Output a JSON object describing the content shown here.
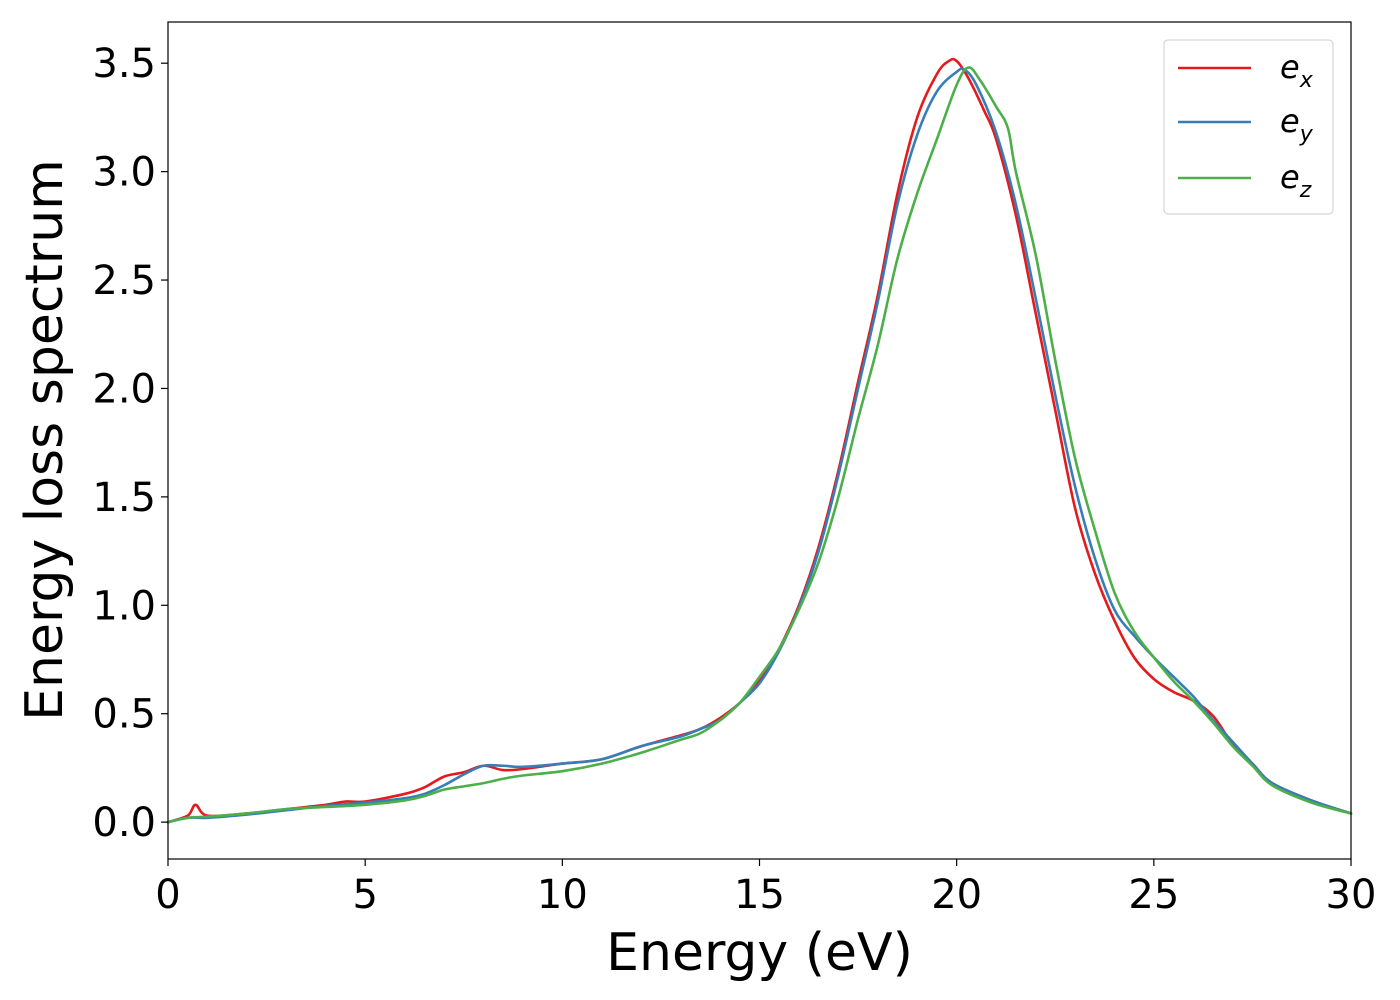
{
  "chart_data": {
    "type": "line",
    "title": "",
    "xlabel": "Energy (eV)",
    "ylabel": "Energy loss spectrum",
    "xlim": [
      0,
      30
    ],
    "ylim": [
      -0.17,
      3.69
    ],
    "xticks": [
      0,
      5,
      10,
      15,
      20,
      25,
      30
    ],
    "xtick_labels": [
      "0",
      "5",
      "10",
      "15",
      "20",
      "25",
      "30"
    ],
    "yticks": [
      0.0,
      0.5,
      1.0,
      1.5,
      2.0,
      2.5,
      3.0,
      3.5
    ],
    "ytick_labels": [
      "0.0",
      "0.5",
      "1.0",
      "1.5",
      "2.0",
      "2.5",
      "3.0",
      "3.5"
    ],
    "grid": false,
    "legend_position": "top-right",
    "series": [
      {
        "name": "e",
        "subscript": "x",
        "color": "#e41a1c",
        "points": [
          [
            0,
            0.0
          ],
          [
            0.5,
            0.03
          ],
          [
            0.7,
            0.08
          ],
          [
            1.0,
            0.03
          ],
          [
            2,
            0.04
          ],
          [
            3,
            0.06
          ],
          [
            4,
            0.08
          ],
          [
            4.5,
            0.095
          ],
          [
            5,
            0.095
          ],
          [
            6,
            0.13
          ],
          [
            6.5,
            0.16
          ],
          [
            7,
            0.21
          ],
          [
            7.5,
            0.23
          ],
          [
            8,
            0.26
          ],
          [
            8.5,
            0.24
          ],
          [
            9,
            0.245
          ],
          [
            10,
            0.27
          ],
          [
            11,
            0.29
          ],
          [
            12,
            0.35
          ],
          [
            13,
            0.4
          ],
          [
            13.5,
            0.43
          ],
          [
            14,
            0.48
          ],
          [
            14.5,
            0.55
          ],
          [
            15,
            0.65
          ],
          [
            15.5,
            0.8
          ],
          [
            16,
            1.0
          ],
          [
            16.5,
            1.27
          ],
          [
            17,
            1.62
          ],
          [
            17.5,
            2.03
          ],
          [
            18,
            2.43
          ],
          [
            18.5,
            2.9
          ],
          [
            19,
            3.25
          ],
          [
            19.5,
            3.45
          ],
          [
            19.8,
            3.51
          ],
          [
            20,
            3.51
          ],
          [
            20.3,
            3.43
          ],
          [
            20.7,
            3.28
          ],
          [
            21,
            3.15
          ],
          [
            21.5,
            2.8
          ],
          [
            22,
            2.35
          ],
          [
            22.5,
            1.9
          ],
          [
            23,
            1.45
          ],
          [
            23.5,
            1.15
          ],
          [
            24,
            0.93
          ],
          [
            24.5,
            0.76
          ],
          [
            25,
            0.66
          ],
          [
            25.5,
            0.6
          ],
          [
            26,
            0.56
          ],
          [
            26.5,
            0.49
          ],
          [
            27,
            0.36
          ],
          [
            27.5,
            0.27
          ],
          [
            28,
            0.18
          ],
          [
            29,
            0.1
          ],
          [
            30,
            0.04
          ]
        ]
      },
      {
        "name": "e",
        "subscript": "y",
        "color": "#377eb8",
        "points": [
          [
            0,
            0.0
          ],
          [
            0.5,
            0.02
          ],
          [
            1,
            0.02
          ],
          [
            2,
            0.035
          ],
          [
            3,
            0.055
          ],
          [
            4,
            0.075
          ],
          [
            5,
            0.09
          ],
          [
            6,
            0.11
          ],
          [
            6.5,
            0.13
          ],
          [
            7,
            0.17
          ],
          [
            7.5,
            0.22
          ],
          [
            8,
            0.26
          ],
          [
            8.5,
            0.26
          ],
          [
            9,
            0.255
          ],
          [
            10,
            0.27
          ],
          [
            11,
            0.29
          ],
          [
            12,
            0.35
          ],
          [
            13,
            0.395
          ],
          [
            13.5,
            0.43
          ],
          [
            14,
            0.47
          ],
          [
            14.5,
            0.55
          ],
          [
            15,
            0.64
          ],
          [
            15.5,
            0.79
          ],
          [
            16,
            0.99
          ],
          [
            16.5,
            1.25
          ],
          [
            17,
            1.6
          ],
          [
            17.5,
            2.0
          ],
          [
            18,
            2.4
          ],
          [
            18.5,
            2.85
          ],
          [
            19,
            3.17
          ],
          [
            19.5,
            3.37
          ],
          [
            20,
            3.46
          ],
          [
            20.2,
            3.47
          ],
          [
            20.5,
            3.4
          ],
          [
            21,
            3.18
          ],
          [
            21.5,
            2.85
          ],
          [
            22,
            2.42
          ],
          [
            22.5,
            1.97
          ],
          [
            23,
            1.55
          ],
          [
            23.5,
            1.22
          ],
          [
            24,
            0.98
          ],
          [
            24.5,
            0.86
          ],
          [
            25,
            0.76
          ],
          [
            25.5,
            0.67
          ],
          [
            26,
            0.58
          ],
          [
            26.5,
            0.47
          ],
          [
            27,
            0.37
          ],
          [
            27.5,
            0.27
          ],
          [
            28,
            0.18
          ],
          [
            29,
            0.1
          ],
          [
            30,
            0.04
          ]
        ]
      },
      {
        "name": "e",
        "subscript": "z",
        "color": "#4daf4a",
        "points": [
          [
            0,
            0.0
          ],
          [
            0.5,
            0.02
          ],
          [
            1,
            0.025
          ],
          [
            2,
            0.04
          ],
          [
            3,
            0.06
          ],
          [
            4,
            0.07
          ],
          [
            5,
            0.08
          ],
          [
            6,
            0.1
          ],
          [
            6.5,
            0.12
          ],
          [
            7,
            0.15
          ],
          [
            7.5,
            0.165
          ],
          [
            8,
            0.18
          ],
          [
            8.5,
            0.2
          ],
          [
            9,
            0.215
          ],
          [
            10,
            0.235
          ],
          [
            11,
            0.27
          ],
          [
            12,
            0.32
          ],
          [
            13,
            0.38
          ],
          [
            13.5,
            0.41
          ],
          [
            14,
            0.47
          ],
          [
            14.5,
            0.55
          ],
          [
            15,
            0.67
          ],
          [
            15.5,
            0.8
          ],
          [
            16,
            0.98
          ],
          [
            16.5,
            1.2
          ],
          [
            17,
            1.5
          ],
          [
            17.5,
            1.86
          ],
          [
            18,
            2.2
          ],
          [
            18.5,
            2.6
          ],
          [
            19,
            2.9
          ],
          [
            19.5,
            3.15
          ],
          [
            20,
            3.4
          ],
          [
            20.3,
            3.48
          ],
          [
            20.6,
            3.42
          ],
          [
            21,
            3.3
          ],
          [
            21.3,
            3.2
          ],
          [
            21.5,
            3.0
          ],
          [
            22,
            2.62
          ],
          [
            22.5,
            2.13
          ],
          [
            23,
            1.68
          ],
          [
            23.5,
            1.35
          ],
          [
            24,
            1.06
          ],
          [
            24.5,
            0.88
          ],
          [
            25,
            0.76
          ],
          [
            25.5,
            0.65
          ],
          [
            26,
            0.56
          ],
          [
            26.5,
            0.46
          ],
          [
            27,
            0.35
          ],
          [
            27.5,
            0.26
          ],
          [
            28,
            0.17
          ],
          [
            29,
            0.09
          ],
          [
            30,
            0.04
          ]
        ]
      }
    ]
  }
}
